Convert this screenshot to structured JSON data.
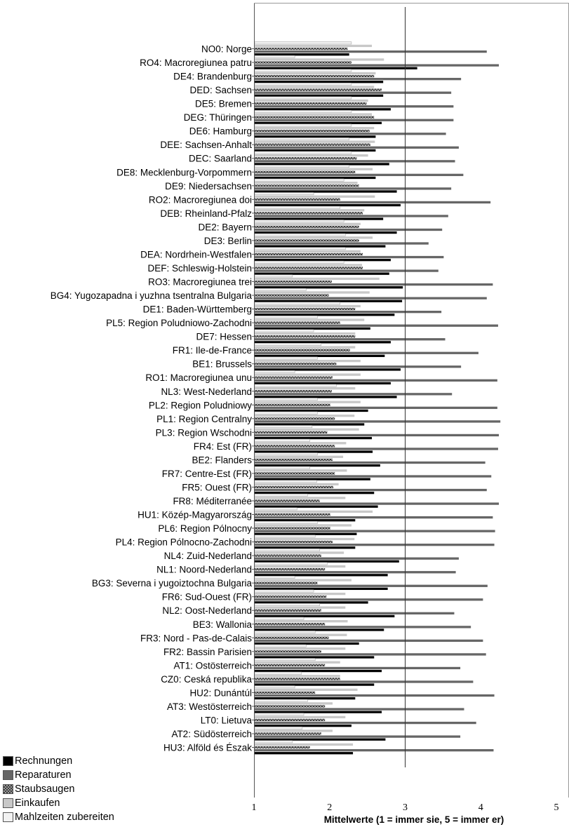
{
  "chart_data": {
    "type": "bar",
    "orientation": "horizontal",
    "title": "",
    "xlabel": "Mittelwerte (1 = immer sie, 5 = immer er)",
    "ylabel": "",
    "xlim": [
      1,
      5
    ],
    "xticks": [
      "1",
      "2",
      "3",
      "4",
      "5"
    ],
    "reference_line": 3,
    "grid": false,
    "legend_position": "bottom-left",
    "categories": [
      "NO0: Norge",
      "RO4: Macroregiunea patru",
      "DE4: Brandenburg",
      "DED: Sachsen",
      "DE5: Bremen",
      "DEG: Thüringen",
      "DE6: Hamburg",
      "DEE: Sachsen-Anhalt",
      "DEC: Saarland",
      "DE8: Mecklenburg-Vorpommern",
      "DE9: Niedersachsen",
      "RO2: Macroregiunea doi",
      "DEB: Rheinland-Pfalz",
      "DE2: Bayern",
      "DE3: Berlin",
      "DEA: Nordrhein-Westfalen",
      "DEF: Schleswig-Holstein",
      "RO3: Macroregiunea trei",
      "BG4: Yugozapadna i yuzhna tsentralna Bulgaria",
      "DE1: Baden-Württemberg",
      "PL5: Region Poludniowo-Zachodni",
      "DE7: Hessen",
      "FR1: Ile-de-France",
      "BE1: Brussels",
      "RO1: Macroregiunea unu",
      "NL3: West-Nederland",
      "PL2: Region Poludniowy",
      "PL1: Region Centralny",
      "PL3: Region Wschodni",
      "FR4: Est (FR)",
      "BE2: Flanders",
      "FR7: Centre-Est (FR)",
      "FR5: Ouest (FR)",
      "FR8: Méditerranée",
      "HU1: Közép-Magyarország",
      "PL6: Region Pólnocny",
      "PL4: Region Pólnocno-Zachodni",
      "NL4: Zuid-Nederland",
      "NL1: Noord-Nederland",
      "BG3: Severna i yugoiztochna Bulgaria",
      "FR6: Sud-Ouest (FR)",
      "NL2: Oost-Nederland",
      "BE3: Wallonia",
      "FR3: Nord - Pas-de-Calais",
      "FR2: Bassin Parisien",
      "AT1: Ostösterreich",
      "CZ0: Ceská republika",
      "HU2: Dunántúl",
      "AT3: Westösterreich",
      "LT0: Lietuva",
      "AT2: Südösterreich",
      "HU3: Alföld és Észak"
    ],
    "series": [
      {
        "name": "Mahlzeiten zubereiten",
        "color": "#f2f2f2",
        "values": [
          2.28,
          1.53,
          2.28,
          2.28,
          2.28,
          2.28,
          2.28,
          2.25,
          2.28,
          2.25,
          2.18,
          1.78,
          2.13,
          2.18,
          2.2,
          2.2,
          2.18,
          1.5,
          1.68,
          2.13,
          1.83,
          1.78,
          1.88,
          1.83,
          1.53,
          2.08,
          1.83,
          1.83,
          1.76,
          1.73,
          1.83,
          1.73,
          1.82,
          1.7,
          1.56,
          1.83,
          1.8,
          1.86,
          1.96,
          1.53,
          1.78,
          1.86,
          1.65,
          1.8,
          1.68,
          1.8,
          1.62,
          1.53,
          1.7,
          1.65,
          1.63,
          1.5
        ]
      },
      {
        "name": "Einkaufen",
        "color": "#c8c8c8",
        "values": [
          2.55,
          2.71,
          2.6,
          2.58,
          2.5,
          2.55,
          2.58,
          2.59,
          2.5,
          2.56,
          2.36,
          2.59,
          2.45,
          2.4,
          2.56,
          2.4,
          2.42,
          2.65,
          2.52,
          2.4,
          2.45,
          2.33,
          2.33,
          2.4,
          2.4,
          2.33,
          2.4,
          2.32,
          2.38,
          2.21,
          2.17,
          2.22,
          2.11,
          2.2,
          2.56,
          2.28,
          2.32,
          2.18,
          2.2,
          2.28,
          2.2,
          2.2,
          2.23,
          2.22,
          2.2,
          2.13,
          2.13,
          2.36,
          2.03,
          2.2,
          2.03,
          2.3
        ]
      },
      {
        "name": "Staubsaugen",
        "color": "#8c8c8c",
        "pattern": "checker",
        "values": [
          2.23,
          2.28,
          2.58,
          2.68,
          2.48,
          2.58,
          2.52,
          2.53,
          2.35,
          2.33,
          2.38,
          2.13,
          2.43,
          2.38,
          2.38,
          2.43,
          2.43,
          2.02,
          1.98,
          2.33,
          2.13,
          2.33,
          2.26,
          2.08,
          2.03,
          2.02,
          2.0,
          2.06,
          1.96,
          2.06,
          2.03,
          2.06,
          2.04,
          1.86,
          2.0,
          2.0,
          2.03,
          1.88,
          1.93,
          1.83,
          1.95,
          1.88,
          1.93,
          1.98,
          1.88,
          1.93,
          2.13,
          1.8,
          1.93,
          1.93,
          1.88,
          1.73
        ]
      },
      {
        "name": "Reparaturen",
        "color": "#666666",
        "values": [
          4.07,
          4.23,
          3.73,
          3.6,
          3.63,
          3.63,
          3.53,
          3.7,
          3.65,
          3.76,
          3.6,
          4.12,
          3.56,
          3.48,
          3.3,
          3.5,
          3.43,
          4.15,
          4.07,
          3.47,
          4.22,
          3.52,
          3.96,
          3.73,
          4.21,
          3.61,
          4.21,
          4.25,
          4.23,
          4.22,
          4.05,
          4.13,
          4.07,
          4.23,
          4.15,
          4.18,
          4.17,
          3.7,
          3.66,
          4.08,
          4.02,
          3.64,
          3.86,
          4.02,
          4.06,
          3.72,
          3.89,
          4.17,
          3.77,
          3.93,
          3.72,
          4.16
        ]
      },
      {
        "name": "Rechnungen",
        "color": "#000000",
        "values": [
          2.25,
          3.15,
          2.7,
          2.7,
          2.8,
          2.68,
          2.6,
          2.6,
          2.78,
          2.6,
          2.88,
          2.93,
          2.7,
          2.88,
          2.73,
          2.8,
          2.78,
          2.96,
          2.95,
          2.85,
          2.53,
          2.8,
          2.72,
          2.93,
          2.8,
          2.88,
          2.5,
          2.45,
          2.55,
          2.56,
          2.66,
          2.53,
          2.58,
          2.63,
          2.33,
          2.35,
          2.33,
          2.91,
          2.76,
          2.76,
          2.5,
          2.85,
          2.71,
          2.38,
          2.58,
          2.68,
          2.58,
          2.33,
          2.68,
          2.28,
          2.73,
          2.3
        ]
      }
    ]
  }
}
